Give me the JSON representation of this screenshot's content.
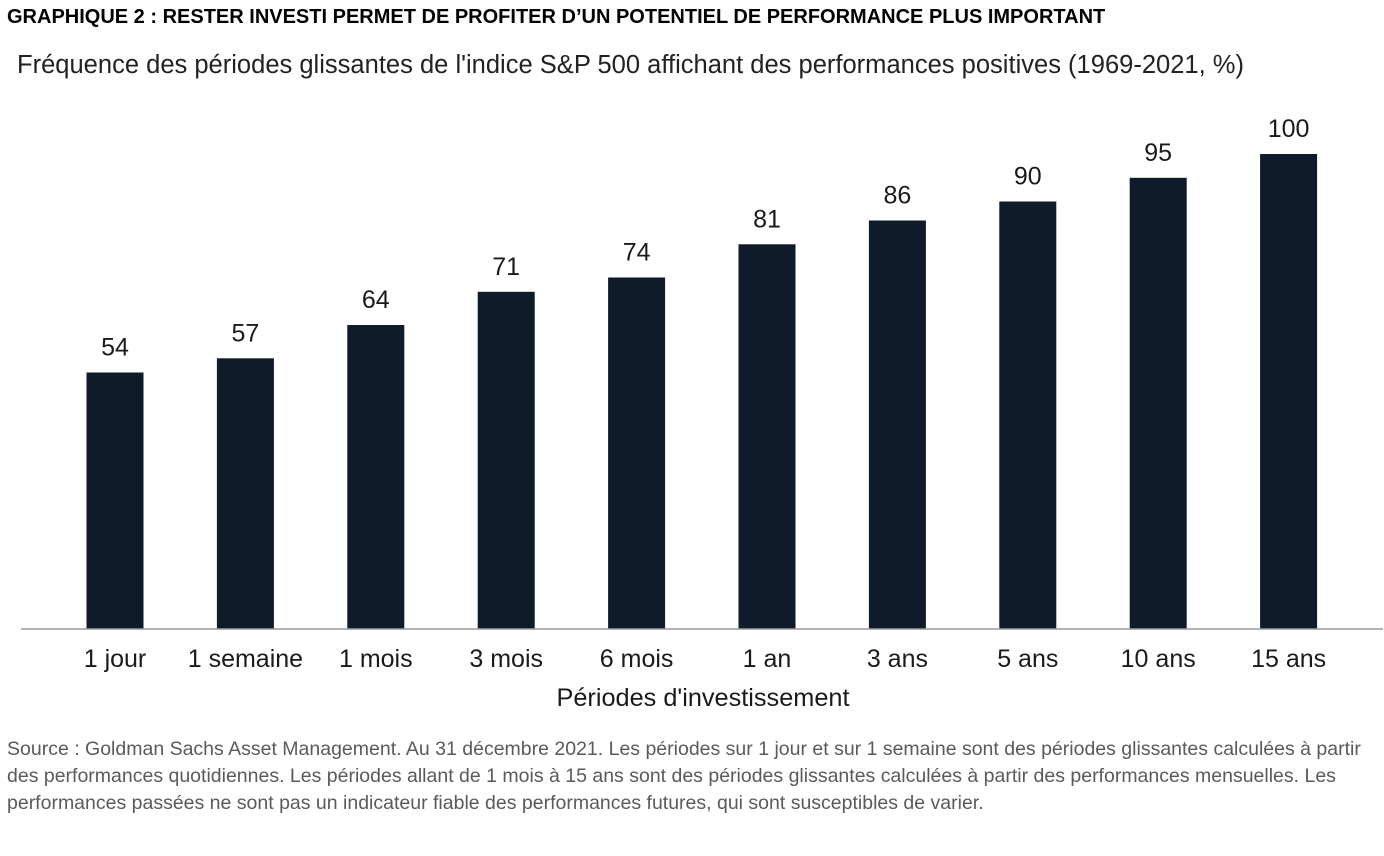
{
  "heading": "GRAPHIQUE 2 : RESTER INVESTI PERMET DE PROFITER D’UN POTENTIEL DE PERFORMANCE PLUS IMPORTANT",
  "source_note": "Source :  Goldman Sachs Asset Management. Au 31 décembre 2021. Les périodes sur 1 jour et sur 1 semaine sont des périodes glissantes calculées à partir des performances quotidiennes. Les périodes allant de 1 mois à 15 ans sont des périodes glissantes calculées à partir des performances mensuelles. Les performances passées ne sont pas un indicateur fiable des performances futures, qui sont susceptibles de varier.",
  "chart_data": {
    "type": "bar",
    "title": "Fréquence des périodes glissantes de l'indice S&P 500 affichant des performances positives (1969-2021, %)",
    "xlabel": "Périodes d'investissement",
    "ylabel": "",
    "categories": [
      "1 jour",
      "1 semaine",
      "1 mois",
      "3 mois",
      "6 mois",
      "1 an",
      "3 ans",
      "5 ans",
      "10 ans",
      "15 ans"
    ],
    "values": [
      54,
      57,
      64,
      71,
      74,
      81,
      86,
      90,
      95,
      100
    ],
    "ylim": [
      0,
      100
    ],
    "grid": false,
    "data_labels": true,
    "bar_color": "#0f1a2a",
    "axis_color": "#9a9a9a"
  }
}
